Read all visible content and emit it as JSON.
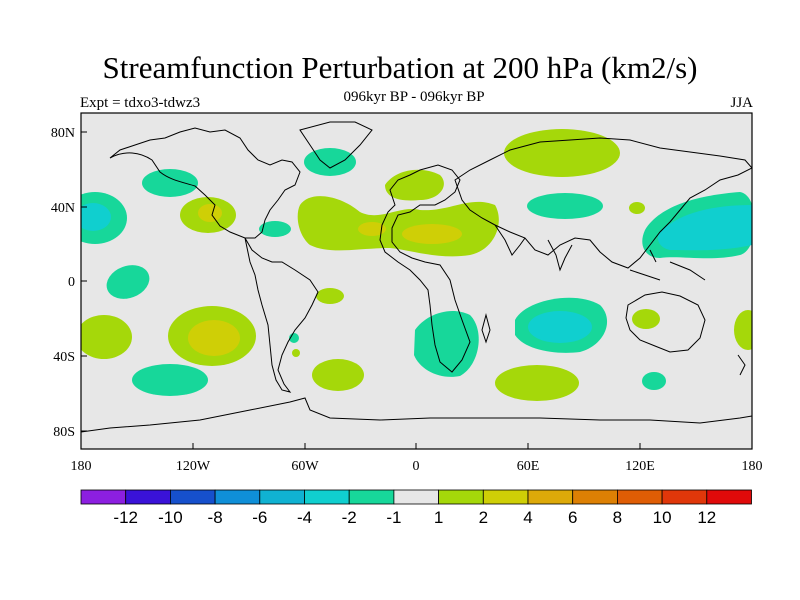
{
  "title": "Streamfunction Perturbation at 200 hPa (km2/s)",
  "subtitle": "096kyr BP - 096kyr BP",
  "left_label": "Expt = tdxo3-tdwz3",
  "right_label": "JJA",
  "axes": {
    "x_ticks": [
      "180",
      "120W",
      "60W",
      "0",
      "60E",
      "120E",
      "180"
    ],
    "y_ticks": [
      "80N",
      "40N",
      "0",
      "40S",
      "80S"
    ]
  },
  "colorbar": {
    "labels": [
      "-12",
      "-10",
      "-8",
      "-6",
      "-4",
      "-2",
      "-1",
      "1",
      "2",
      "4",
      "6",
      "8",
      "10",
      "12"
    ],
    "colors": [
      "#8c1fe0",
      "#3a12d8",
      "#1650cc",
      "#0f8fd8",
      "#10b2d2",
      "#10cfcf",
      "#17d79a",
      "#e7e7e7",
      "#a5d80a",
      "#cfcf06",
      "#dda909",
      "#dd8004",
      "#df5d05",
      "#e0370a",
      "#e00a0a"
    ]
  },
  "colors": {
    "background": "#e7e7e7",
    "coastline": "#000000"
  }
}
